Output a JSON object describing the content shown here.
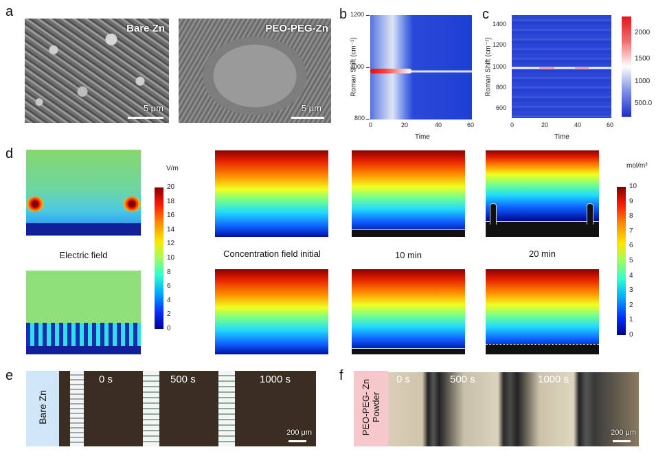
{
  "panels": {
    "a": {
      "letter": "a",
      "left_label": "Bare Zn",
      "right_label": "PEO-PEG-Zn",
      "left_scale": "5 μm",
      "right_scale": "5 μm"
    },
    "b": {
      "letter": "b",
      "ylabel": "Roman Shift (cm⁻¹)",
      "xlabel": "Time",
      "yticks": [
        "1200",
        "1000",
        "800"
      ],
      "xticks": [
        "0",
        "20",
        "40",
        "60"
      ]
    },
    "c": {
      "letter": "c",
      "ylabel": "Roman Shift (cm⁻¹)",
      "xlabel": "Time",
      "yticks": [
        "1400",
        "1200",
        "1000",
        "800",
        "600"
      ],
      "xticks": [
        "0",
        "20",
        "40",
        "60"
      ],
      "colorbar_ticks": [
        "2000",
        "1500",
        "1000",
        "500.0"
      ]
    },
    "d": {
      "letter": "d",
      "field_unit": "V/m",
      "field_ticks": [
        "20",
        "18",
        "16",
        "14",
        "12",
        "10",
        "8",
        "6",
        "4",
        "2",
        "0"
      ],
      "conc_unit": "mol/m³",
      "conc_ticks": [
        "10",
        "9",
        "8",
        "7",
        "6",
        "5",
        "4",
        "3",
        "2",
        "1",
        "0"
      ],
      "captions": [
        "Electric field",
        "Concentration field initial",
        "10 min",
        "20 min"
      ]
    },
    "e": {
      "letter": "e",
      "side_label": "Bare Zn",
      "times": [
        "0 s",
        "500 s",
        "1000 s"
      ],
      "scale": "200 μm"
    },
    "f": {
      "letter": "f",
      "side_label_line1": "PEO-PEG- Zn",
      "side_label_line2": "Powder",
      "times": [
        "0 s",
        "500 s",
        "1000 s"
      ],
      "scale": "200 μm"
    }
  },
  "colors": {
    "jet_dark_red": "#7f0000",
    "jet_blue": "#1428c8",
    "field_green": "#8fe07a",
    "panel_e_tag": "#cfe6f7",
    "panel_f_tag": "#f6c8cc"
  },
  "chart_data": [
    {
      "type": "heatmap",
      "panel": "b",
      "xlabel": "Time",
      "ylabel": "Roman Shift (cm⁻¹)",
      "xlim": [
        0,
        60
      ],
      "ylim": [
        800,
        1200
      ],
      "peak_band": 980
    },
    {
      "type": "heatmap",
      "panel": "c",
      "xlabel": "Time",
      "ylabel": "Roman Shift (cm⁻¹)",
      "xlim": [
        0,
        60
      ],
      "ylim": [
        500,
        1500
      ],
      "peak_band": 980,
      "colorbar_range": [
        200,
        2400
      ]
    }
  ]
}
